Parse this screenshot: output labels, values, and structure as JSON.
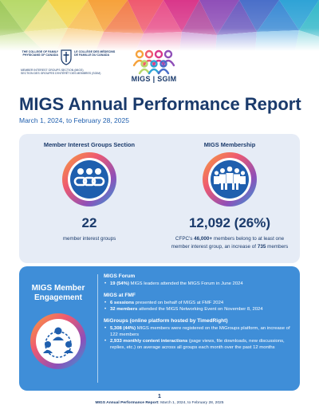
{
  "header": {
    "cfpc_name_en": "THE COLLEGE OF FAMILY PHYSICIANS OF CANADA",
    "cfpc_name_fr": "LE COLLÈGE DES MÉDECINS DE FAMILLE DU CANADA",
    "cfpc_section_en": "MEMBER INTEREST GROUPS SECTION (MIGS)",
    "cfpc_section_fr": "SECTION DES GROUPES D'INTÉRÊT DES MEMBRES (SGIM)",
    "migs_logo_text": "MIGS | SGIM"
  },
  "report": {
    "title": "MIGS Annual Performance Report",
    "date_range": "March 1, 2024, to February 28, 2025"
  },
  "stats": {
    "groups": {
      "heading": "Member Interest Groups Section",
      "value": "22",
      "desc": "member interest groups",
      "icon": "people-links-icon"
    },
    "membership": {
      "heading": "MIGS Membership",
      "value": "12,092 (26%)",
      "desc_part1": "CFPC's ",
      "desc_bold1": "46,000+",
      "desc_part2": " members belong to at least one member interest group, an increase of ",
      "desc_bold2": "735",
      "desc_part3": " members",
      "icon": "crowd-icon"
    }
  },
  "engagement": {
    "title": "MIGS Member Engagement",
    "icon": "network-people-icon",
    "forum": {
      "title": "MIGS Forum",
      "b1_bold": "19 (54%)",
      "b1_rest": " MIGS leaders attended the MIGS Forum in June 2024"
    },
    "fmf": {
      "title": "MIGS at FMF",
      "b1_bold": "6 sessions",
      "b1_rest": " presented on behalf of MIGS at FMF 2024",
      "b2_bold": "32 members",
      "b2_rest": " attended the MIGS Networking Event on November 8, 2024"
    },
    "migroups": {
      "title": "MiGroups (online platform hosted by TimedRight)",
      "b1_bold": "5,308 (44%)",
      "b1_rest": " MIGS members were registered on the MiGroups platform, an increase of 122 members",
      "b2_bold": "2,933 monthly content interactions",
      "b2_rest": " (page views, file downloads, new discussions, replies, etc.) on average across all groups each month over the past 12 months"
    }
  },
  "footer": {
    "page_number": "1",
    "report_name": "MIGS Annual Performance Report:",
    "date_range": " March 1, 2024, to February 28, 2025"
  },
  "colors": {
    "navy": "#1a3a6b",
    "accent_blue": "#1f5fae",
    "panel_light": "#e6ecf6",
    "panel_blue": "#3f8ed8"
  }
}
